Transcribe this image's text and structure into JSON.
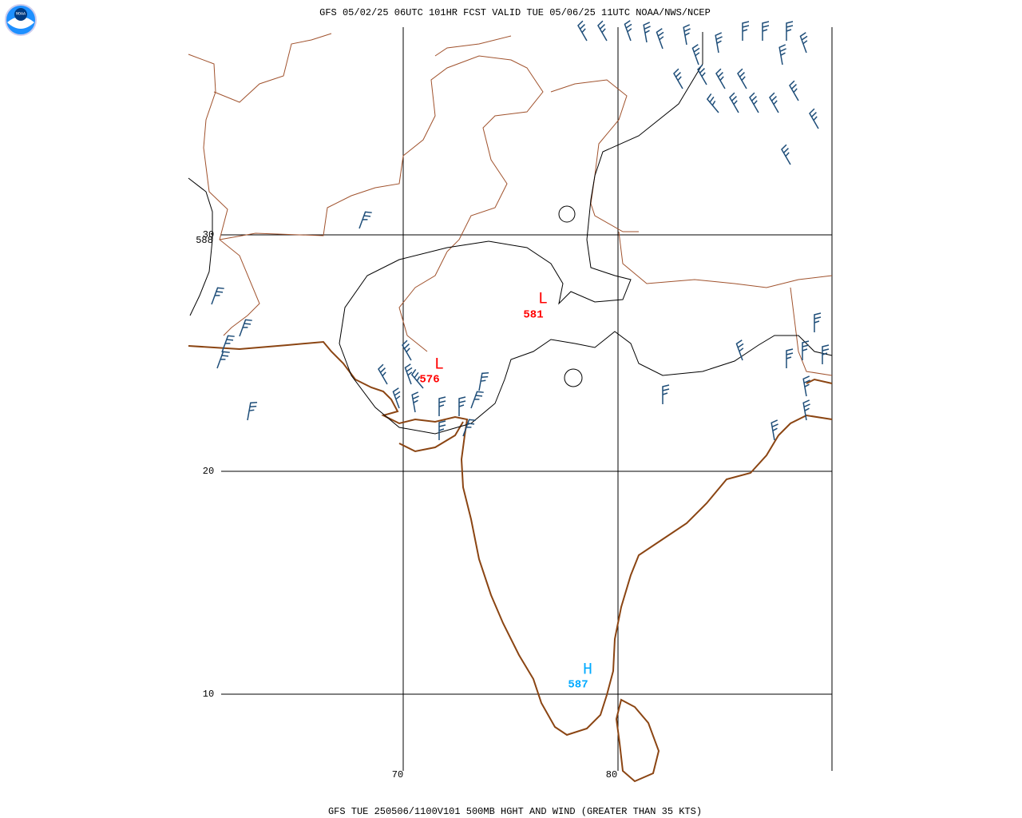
{
  "header": {
    "title": "GFS 05/02/25 06UTC 101HR FCST VALID TUE 05/06/25 11UTC NOAA/NWS/NCEP",
    "logo": "NOAA"
  },
  "footer": {
    "caption": "GFS TUE 250506/1100V101 500MB HGHT AND WIND (GREATER THAN 35 KTS)"
  },
  "grid": {
    "lat_labels": [
      "30",
      "20",
      "10"
    ],
    "lon_labels": [
      "70",
      "80"
    ]
  },
  "contour_labels": [
    "588"
  ],
  "centers": [
    {
      "symbol": "L",
      "value": "581"
    },
    {
      "symbol": "L",
      "value": "576"
    },
    {
      "symbol": "H",
      "value": "587"
    }
  ]
}
